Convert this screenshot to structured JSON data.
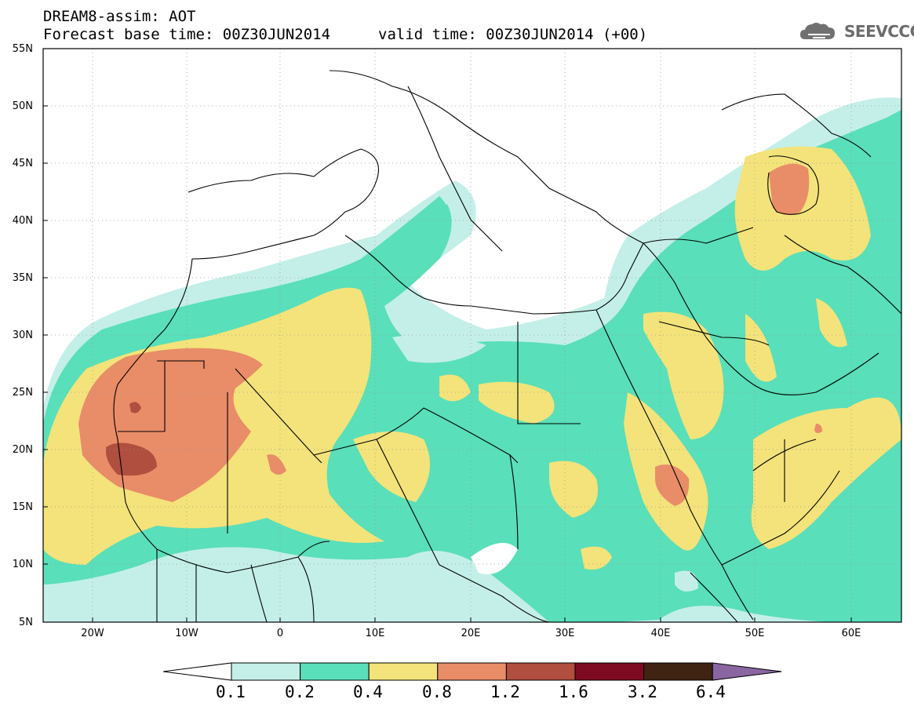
{
  "header": {
    "line1": "DREAM8-assim: AOT",
    "line2": "Forecast base time: 00Z30JUN2014",
    "line3": "valid time: 00Z30JUN2014 (+00)",
    "logo_text": "SEEVCCC",
    "logo_icon": "cloud-icon"
  },
  "map": {
    "lat_labels": [
      "55N",
      "50N",
      "45N",
      "40N",
      "35N",
      "30N",
      "25N",
      "20N",
      "15N",
      "10N",
      "5N"
    ],
    "lon_labels": [
      "20W",
      "10W",
      "0",
      "10E",
      "20E",
      "30E",
      "40E",
      "50E",
      "60E"
    ]
  },
  "colorbar": {
    "labels": [
      "0.1",
      "0.2",
      "0.4",
      "0.8",
      "1.2",
      "1.6",
      "3.2",
      "6.4"
    ],
    "colors": [
      "#ffffff",
      "#c4efe8",
      "#59dfb9",
      "#f3e37a",
      "#e98c68",
      "#b04e3f",
      "#7d0a21",
      "#3f2313",
      "#8a66a0"
    ]
  }
}
